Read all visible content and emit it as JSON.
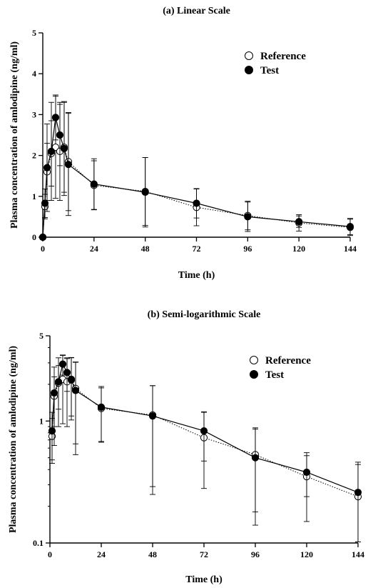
{
  "chart_data": [
    {
      "type": "line",
      "title": "(a) Linear Scale",
      "xlabel": "Time (h)",
      "ylabel": "Plasma concentration of amlodipine (ng/ml)",
      "xlim": [
        0,
        144
      ],
      "ylim": [
        0,
        5
      ],
      "yscale": "linear",
      "xticks": [
        0,
        24,
        48,
        72,
        96,
        120,
        144
      ],
      "yticks": [
        0,
        1,
        2,
        3,
        4,
        5
      ],
      "legend_position": "top-right",
      "series": [
        {
          "name": "Reference",
          "marker": "open-circle",
          "line": "dotted",
          "x": [
            0,
            1,
            2,
            4,
            6,
            8,
            10,
            12,
            24,
            48,
            72,
            96,
            120,
            144
          ],
          "y": [
            0,
            0.75,
            1.6,
            2.05,
            2.2,
            2.1,
            2.2,
            1.85,
            1.27,
            1.12,
            0.73,
            0.53,
            0.35,
            0.24
          ],
          "err": [
            0,
            0.3,
            0.7,
            0.8,
            1.25,
            1.2,
            1.1,
            1.2,
            0.6,
            0.83,
            0.45,
            0.35,
            0.2,
            0.2
          ]
        },
        {
          "name": "Test",
          "marker": "filled-circle",
          "line": "solid",
          "x": [
            0,
            1,
            2,
            4,
            6,
            8,
            10,
            12,
            24,
            48,
            72,
            96,
            120,
            144
          ],
          "y": [
            0,
            0.83,
            1.7,
            2.1,
            2.93,
            2.5,
            2.17,
            1.78,
            1.3,
            1.1,
            0.83,
            0.5,
            0.38,
            0.26
          ],
          "err": [
            0,
            0.35,
            1.07,
            1.2,
            0.55,
            0.75,
            1.15,
            1.25,
            0.62,
            0.85,
            0.36,
            0.36,
            0.14,
            0.2
          ]
        }
      ]
    },
    {
      "type": "line",
      "title": "(b) Semi-logarithmic Scale",
      "xlabel": "Time (h)",
      "ylabel": "Plasma concentration of amlodipine (ng/ml)",
      "xlim": [
        0,
        144
      ],
      "ylim": [
        0.1,
        5
      ],
      "yscale": "log",
      "xticks": [
        0,
        24,
        48,
        72,
        96,
        120,
        144
      ],
      "yticks": [
        0.1,
        1,
        5
      ],
      "legend_position": "top-right",
      "series": [
        {
          "name": "Reference",
          "marker": "open-circle",
          "line": "dotted",
          "x": [
            1,
            2,
            4,
            6,
            8,
            10,
            12,
            24,
            48,
            72,
            96,
            120,
            144
          ],
          "y": [
            0.75,
            1.6,
            2.05,
            2.2,
            2.1,
            2.2,
            1.85,
            1.27,
            1.12,
            0.73,
            0.53,
            0.35,
            0.24
          ],
          "err": [
            0.3,
            0.7,
            0.8,
            1.25,
            1.2,
            1.1,
            1.2,
            0.6,
            0.83,
            0.45,
            0.35,
            0.2,
            0.2
          ]
        },
        {
          "name": "Test",
          "marker": "filled-circle",
          "line": "solid",
          "x": [
            1,
            2,
            4,
            6,
            8,
            10,
            12,
            24,
            48,
            72,
            96,
            120,
            144
          ],
          "y": [
            0.83,
            1.7,
            2.1,
            2.93,
            2.5,
            2.17,
            1.78,
            1.3,
            1.1,
            0.83,
            0.5,
            0.38,
            0.26
          ],
          "err": [
            0.35,
            1.07,
            1.2,
            0.55,
            0.75,
            1.15,
            1.25,
            0.62,
            0.85,
            0.36,
            0.36,
            0.14,
            0.2
          ]
        }
      ]
    }
  ]
}
